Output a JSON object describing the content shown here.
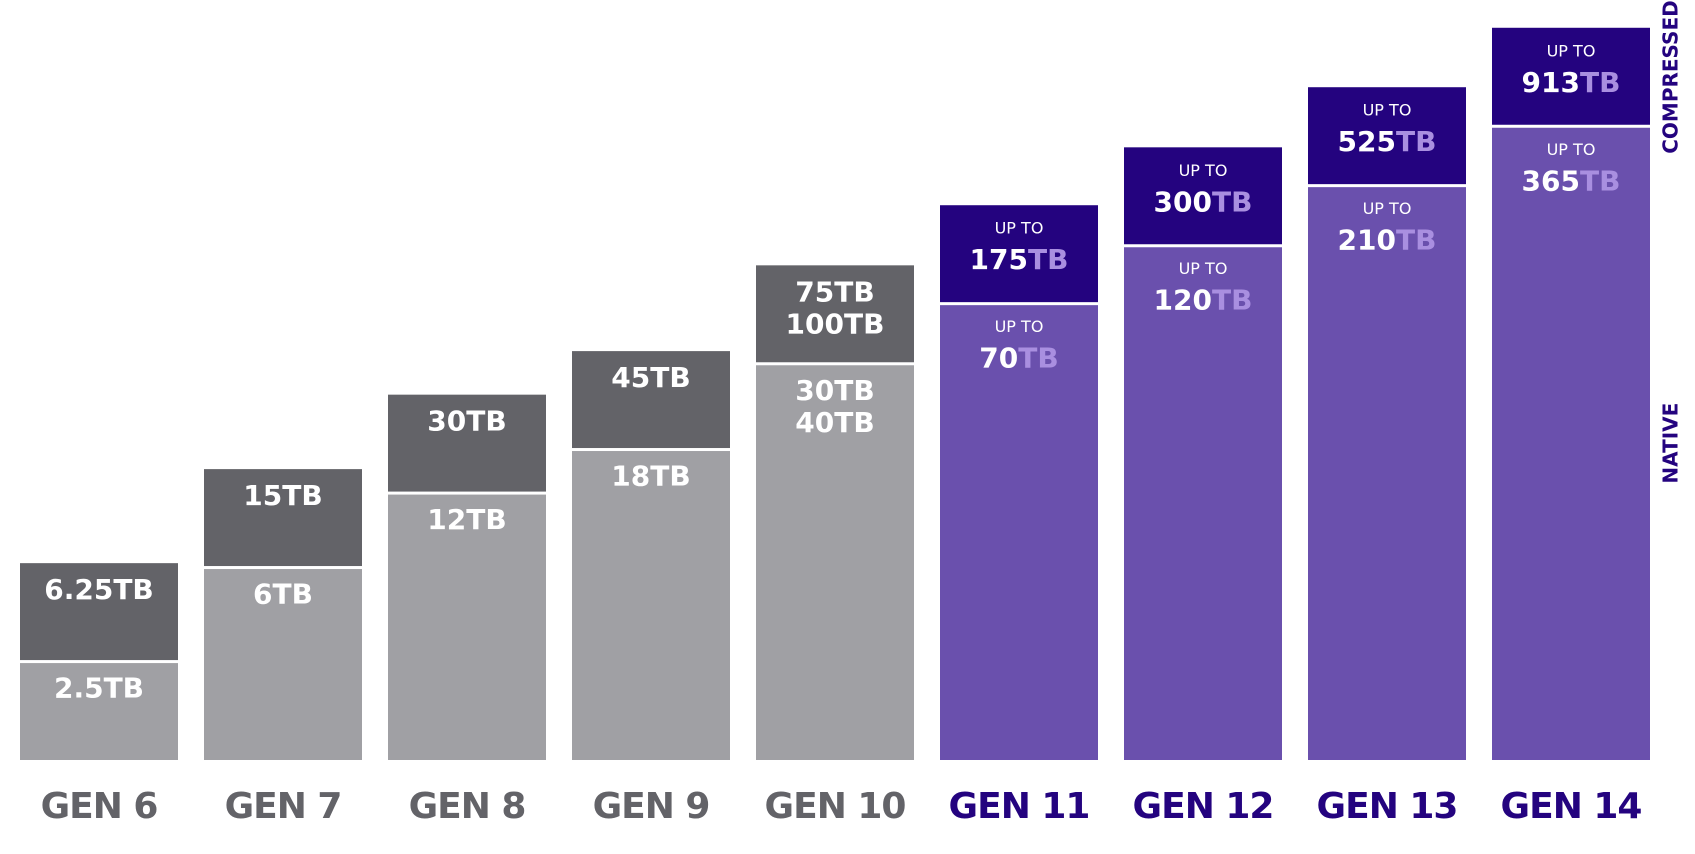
{
  "chart_data": {
    "type": "bar",
    "categories": [
      "GEN 6",
      "GEN 7",
      "GEN 8",
      "GEN 9",
      "GEN 10",
      "GEN 11",
      "GEN 12",
      "GEN 13",
      "GEN 14"
    ],
    "category_colors": [
      "#636368",
      "#636368",
      "#636368",
      "#636368",
      "#636368",
      "#24037f",
      "#24037f",
      "#24037f",
      "#24037f"
    ],
    "series": [
      {
        "name": "NATIVE",
        "colors": [
          "#a0a0a4",
          "#a0a0a4",
          "#a0a0a4",
          "#a0a0a4",
          "#a0a0a4",
          "#6a50ad",
          "#6a50ad",
          "#6a50ad",
          "#6a50ad"
        ],
        "values": [
          2.5,
          6,
          12,
          18,
          40,
          70,
          120,
          210,
          365
        ],
        "value_labels": [
          "2.5TB",
          "6TB",
          "12TB",
          "18TB",
          [
            "30TB",
            "40TB"
          ],
          "70TB",
          "120TB",
          "210TB",
          "365TB"
        ],
        "prefixes": [
          null,
          null,
          null,
          null,
          null,
          "UP TO",
          "UP TO",
          "UP TO",
          "UP TO"
        ],
        "unit_colors": [
          null,
          null,
          null,
          null,
          null,
          "#a98fe0",
          "#a98fe0",
          "#a98fe0",
          "#a98fe0"
        ]
      },
      {
        "name": "COMPRESSED",
        "colors": [
          "#636368",
          "#636368",
          "#636368",
          "#636368",
          "#636368",
          "#24037f",
          "#24037f",
          "#24037f",
          "#24037f"
        ],
        "values": [
          6.25,
          15,
          30,
          45,
          100,
          175,
          300,
          525,
          913
        ],
        "value_labels": [
          "6.25TB",
          "15TB",
          "30TB",
          "45TB",
          [
            "75TB",
            "100TB"
          ],
          "175TB",
          "300TB",
          "525TB",
          "913TB"
        ],
        "prefixes": [
          null,
          null,
          null,
          null,
          null,
          "UP TO",
          "UP TO",
          "UP TO",
          "UP TO"
        ],
        "unit_colors": [
          null,
          null,
          null,
          null,
          null,
          "#a98fe0",
          "#a98fe0",
          "#a98fe0",
          "#a98fe0"
        ]
      }
    ],
    "ylim": [
      1,
      1000
    ],
    "log": true,
    "legend_color": "#24037f"
  }
}
